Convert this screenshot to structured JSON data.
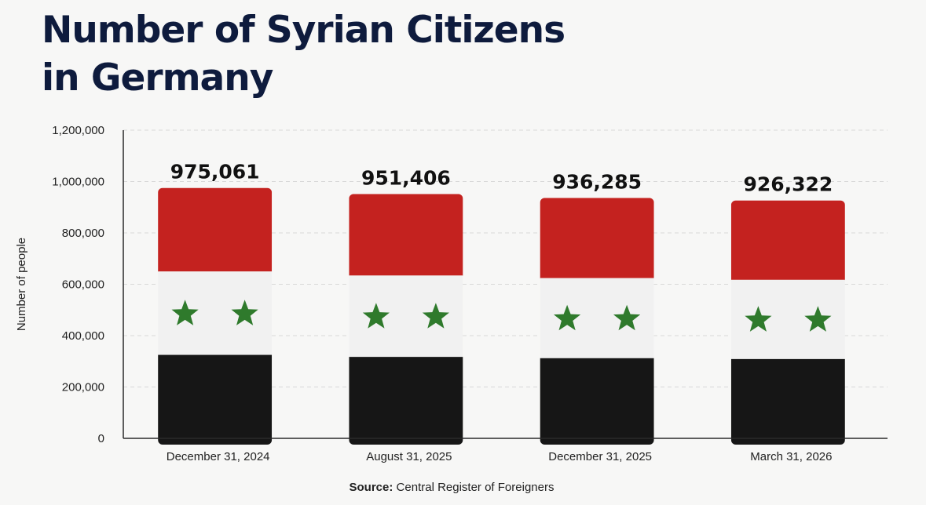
{
  "title": {
    "line1": "Number of Syrian Citizens",
    "line2": "in Germany"
  },
  "chart_data": {
    "type": "bar",
    "title": "Number of Syrian Citizens in Germany",
    "categories": [
      "December 31, 2024",
      "August 31, 2025",
      "December 31, 2025",
      "March 31, 2026"
    ],
    "values": [
      975061,
      951406,
      936285,
      926322
    ],
    "value_labels": [
      "975,061",
      "951,406",
      "936,285",
      "926,322"
    ],
    "ylabel": "Number of people",
    "xlabel": "",
    "ylim": [
      0,
      1200000
    ],
    "yticks": [
      0,
      200000,
      400000,
      600000,
      800000,
      1000000,
      1200000
    ],
    "ytick_labels": [
      "0",
      "200,000",
      "400,000",
      "600,000",
      "800,000",
      "1,000,000",
      "1,200,000"
    ],
    "grid": true,
    "bar_style": "syrian-flag",
    "colors": {
      "red": "#c4221f",
      "white": "#f1f1f1",
      "black": "#161616",
      "star": "#2f7a2c",
      "grid": "#d8d8d8",
      "axis": "#2a2a2a"
    }
  },
  "source": {
    "label": "Source:",
    "text": "Central Register of Foreigners"
  }
}
